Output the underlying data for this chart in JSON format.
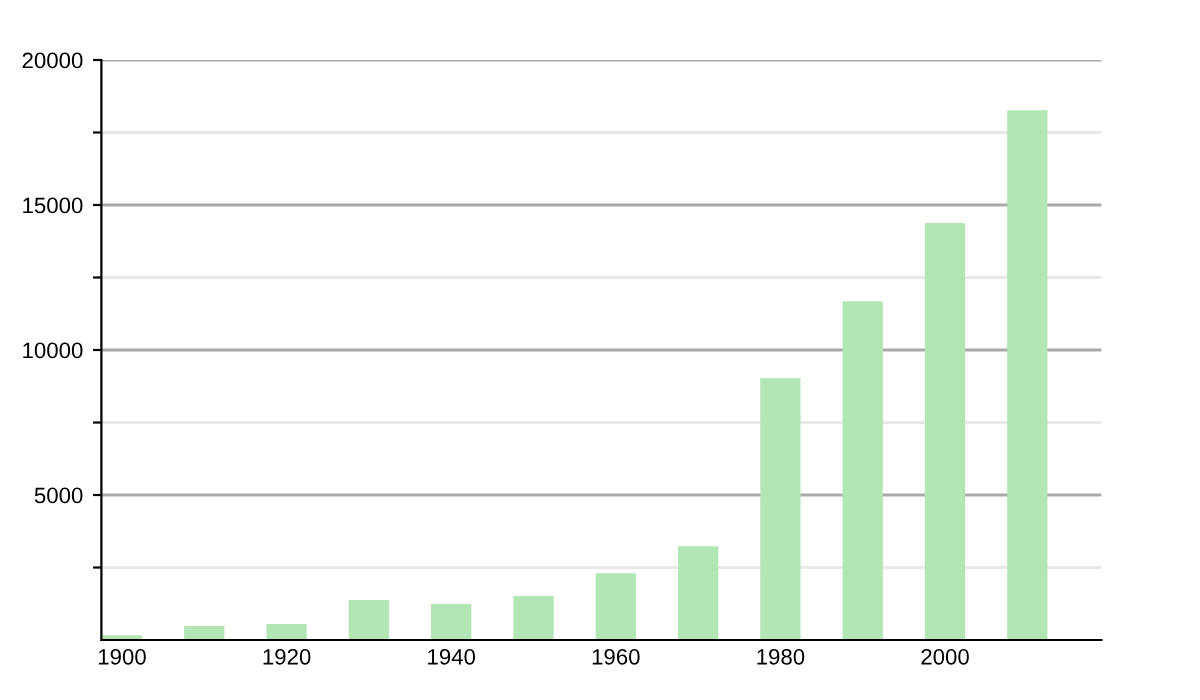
{
  "chart_data": {
    "type": "bar",
    "x": [
      1900,
      1910,
      1920,
      1930,
      1940,
      1950,
      1960,
      1970,
      1980,
      1990,
      2000,
      2010
    ],
    "values": [
      160,
      480,
      550,
      1380,
      1240,
      1520,
      2300,
      3230,
      9030,
      11680,
      14380,
      18270
    ],
    "color": "#b3e6b5",
    "xlim": [
      1897.5,
      2019
    ],
    "xticks": [
      1900,
      1920,
      1940,
      1960,
      1980,
      2000
    ],
    "ylim": [
      0,
      20000
    ],
    "yticks": [
      {
        "value": 2500,
        "label": null
      },
      5000,
      {
        "value": 7500,
        "label": null
      },
      10000,
      {
        "value": 12500,
        "label": null
      },
      15000,
      {
        "value": 17500,
        "label": null
      },
      20000
    ],
    "grid": "y"
  }
}
